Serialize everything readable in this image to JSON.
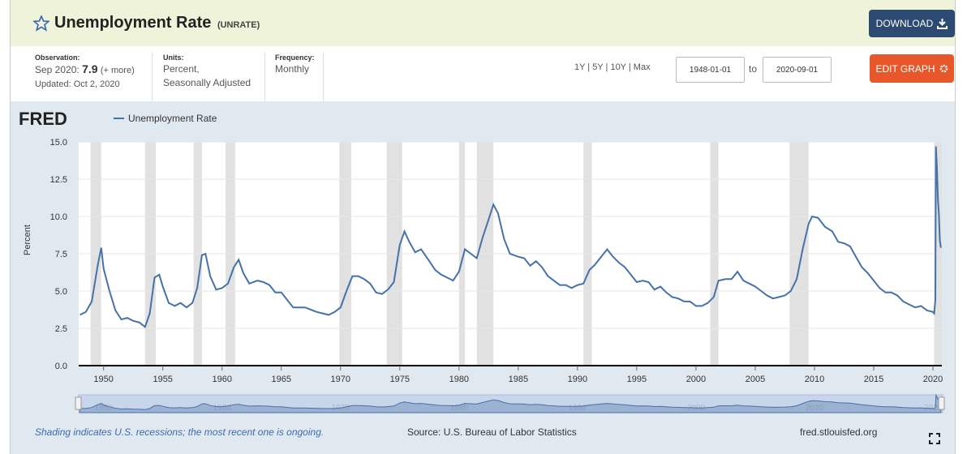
{
  "header": {
    "title": "Unemployment Rate",
    "series_id": "(UNRATE)",
    "download": "DOWNLOAD"
  },
  "info": {
    "observation_label": "Observation:",
    "observation_date": "Sep 2020:",
    "observation_value": 7.9,
    "more": "(+ more)",
    "updated": "Updated: Oct 2, 2020",
    "units_label": "Units:",
    "units_line1": "Percent,",
    "units_line2": "Seasonally Adjusted",
    "frequency_label": "Frequency:",
    "frequency": "Monthly",
    "ranges": "1Y | 5Y | 10Y | Max",
    "start_date": "1948-01-01",
    "to": "to",
    "end_date": "2020-09-01",
    "edit_graph": "EDIT GRAPH"
  },
  "logo": "FRED",
  "footer": {
    "note": "Shading indicates U.S. recessions; the most recent one is ongoing.",
    "source": "Source: U.S. Bureau of Labor Statistics",
    "site": "fred.stlouisfed.org"
  },
  "chart_data": {
    "type": "line",
    "y_label": "Percent",
    "x": [
      1948.0,
      1948.5,
      1949.0,
      1949.5,
      1949.8,
      1950.0,
      1950.5,
      1951.0,
      1951.5,
      1952.0,
      1952.5,
      1953.0,
      1953.5,
      1953.9,
      1954.3,
      1954.7,
      1955.0,
      1955.5,
      1956.0,
      1956.5,
      1957.0,
      1957.5,
      1957.9,
      1958.3,
      1958.6,
      1959.0,
      1959.5,
      1960.0,
      1960.5,
      1961.0,
      1961.4,
      1961.8,
      1962.3,
      1963.0,
      1963.5,
      1964.0,
      1964.5,
      1965.0,
      1965.5,
      1966.0,
      1967.0,
      1968.0,
      1968.5,
      1969.0,
      1969.5,
      1970.0,
      1970.5,
      1971.0,
      1971.5,
      1972.0,
      1972.5,
      1973.0,
      1973.5,
      1974.0,
      1974.5,
      1975.0,
      1975.4,
      1975.8,
      1976.3,
      1976.8,
      1977.5,
      1978.0,
      1978.5,
      1979.0,
      1979.5,
      1980.0,
      1980.5,
      1981.0,
      1981.5,
      1982.0,
      1982.5,
      1982.9,
      1983.3,
      1983.8,
      1984.3,
      1985.0,
      1985.5,
      1986.0,
      1986.5,
      1987.0,
      1987.5,
      1988.0,
      1988.5,
      1989.0,
      1989.5,
      1990.0,
      1990.5,
      1991.0,
      1991.5,
      1992.0,
      1992.5,
      1993.0,
      1993.5,
      1994.0,
      1994.5,
      1995.0,
      1995.5,
      1996.0,
      1996.5,
      1997.0,
      1997.5,
      1998.0,
      1998.5,
      1999.0,
      1999.5,
      2000.0,
      2000.5,
      2001.0,
      2001.5,
      2001.9,
      2002.5,
      2003.0,
      2003.5,
      2004.0,
      2004.5,
      2005.0,
      2005.5,
      2006.0,
      2006.5,
      2007.0,
      2007.5,
      2008.0,
      2008.5,
      2009.0,
      2009.5,
      2009.8,
      2010.3,
      2010.9,
      2011.5,
      2012.0,
      2012.5,
      2013.0,
      2013.5,
      2014.0,
      2014.5,
      2015.0,
      2015.5,
      2016.0,
      2016.5,
      2017.0,
      2017.5,
      2018.0,
      2018.5,
      2019.0,
      2019.5,
      2020.0,
      2020.1,
      2020.2,
      2020.25,
      2020.33,
      2020.42,
      2020.5,
      2020.58,
      2020.67
    ],
    "series": [
      {
        "name": "Unemployment Rate",
        "color": "#4572a7",
        "values": [
          3.4,
          3.6,
          4.3,
          6.7,
          7.9,
          6.5,
          5.0,
          3.7,
          3.1,
          3.2,
          3.0,
          2.9,
          2.6,
          3.5,
          5.9,
          6.1,
          5.3,
          4.2,
          4.0,
          4.2,
          3.9,
          4.2,
          5.2,
          7.4,
          7.5,
          6.0,
          5.1,
          5.2,
          5.5,
          6.6,
          7.1,
          6.2,
          5.5,
          5.7,
          5.6,
          5.4,
          4.9,
          4.9,
          4.4,
          3.9,
          3.9,
          3.6,
          3.5,
          3.4,
          3.6,
          3.9,
          5.0,
          6.0,
          6.0,
          5.8,
          5.5,
          4.9,
          4.8,
          5.1,
          5.6,
          8.1,
          9.0,
          8.3,
          7.6,
          7.8,
          7.0,
          6.4,
          6.1,
          5.9,
          5.7,
          6.3,
          7.8,
          7.5,
          7.2,
          8.6,
          9.8,
          10.8,
          10.2,
          8.5,
          7.5,
          7.3,
          7.2,
          6.7,
          7.0,
          6.6,
          6.0,
          5.7,
          5.4,
          5.4,
          5.2,
          5.4,
          5.5,
          6.4,
          6.8,
          7.3,
          7.8,
          7.3,
          6.9,
          6.6,
          6.1,
          5.6,
          5.7,
          5.6,
          5.1,
          5.3,
          4.9,
          4.6,
          4.5,
          4.3,
          4.3,
          4.0,
          4.0,
          4.2,
          4.6,
          5.7,
          5.8,
          5.8,
          6.3,
          5.7,
          5.5,
          5.3,
          5.0,
          4.7,
          4.5,
          4.6,
          4.7,
          5.0,
          5.8,
          7.8,
          9.5,
          10.0,
          9.9,
          9.3,
          9.0,
          8.3,
          8.2,
          8.0,
          7.3,
          6.6,
          6.2,
          5.7,
          5.2,
          4.9,
          4.9,
          4.7,
          4.3,
          4.1,
          3.9,
          4.0,
          3.7,
          3.6,
          3.5,
          4.4,
          14.7,
          13.3,
          11.1,
          10.2,
          8.4,
          7.9
        ]
      }
    ],
    "recessions": [
      [
        1948.9,
        1949.8
      ],
      [
        1953.5,
        1954.4
      ],
      [
        1957.6,
        1958.3
      ],
      [
        1960.3,
        1961.1
      ],
      [
        1969.9,
        1970.9
      ],
      [
        1973.9,
        1975.2
      ],
      [
        1980.0,
        1980.5
      ],
      [
        1981.5,
        1982.9
      ],
      [
        1990.5,
        1991.2
      ],
      [
        2001.2,
        2001.9
      ],
      [
        2007.9,
        2009.5
      ],
      [
        2020.1,
        2020.75
      ]
    ],
    "xlim": [
      1947.9,
      2020.75
    ],
    "xticks": [
      1950,
      1955,
      1960,
      1965,
      1970,
      1975,
      1980,
      1985,
      1990,
      1995,
      2000,
      2005,
      2010,
      2015,
      2020
    ],
    "ylim": [
      0,
      15
    ],
    "yticks": [
      {
        "value": 0,
        "label": "0.0"
      },
      {
        "value": 2.5,
        "label": "2.5"
      },
      {
        "value": 5,
        "label": "5.0"
      },
      {
        "value": 7.5,
        "label": "7.5"
      },
      {
        "value": 10,
        "label": "10.0"
      },
      {
        "value": 12.5,
        "label": "12.5"
      },
      {
        "value": 15,
        "label": "15.0"
      }
    ],
    "navigator_xticks": [
      1950,
      1960,
      1970,
      1980,
      1990,
      2000,
      2010,
      2020
    ],
    "grid": true,
    "legend": "top-left"
  }
}
